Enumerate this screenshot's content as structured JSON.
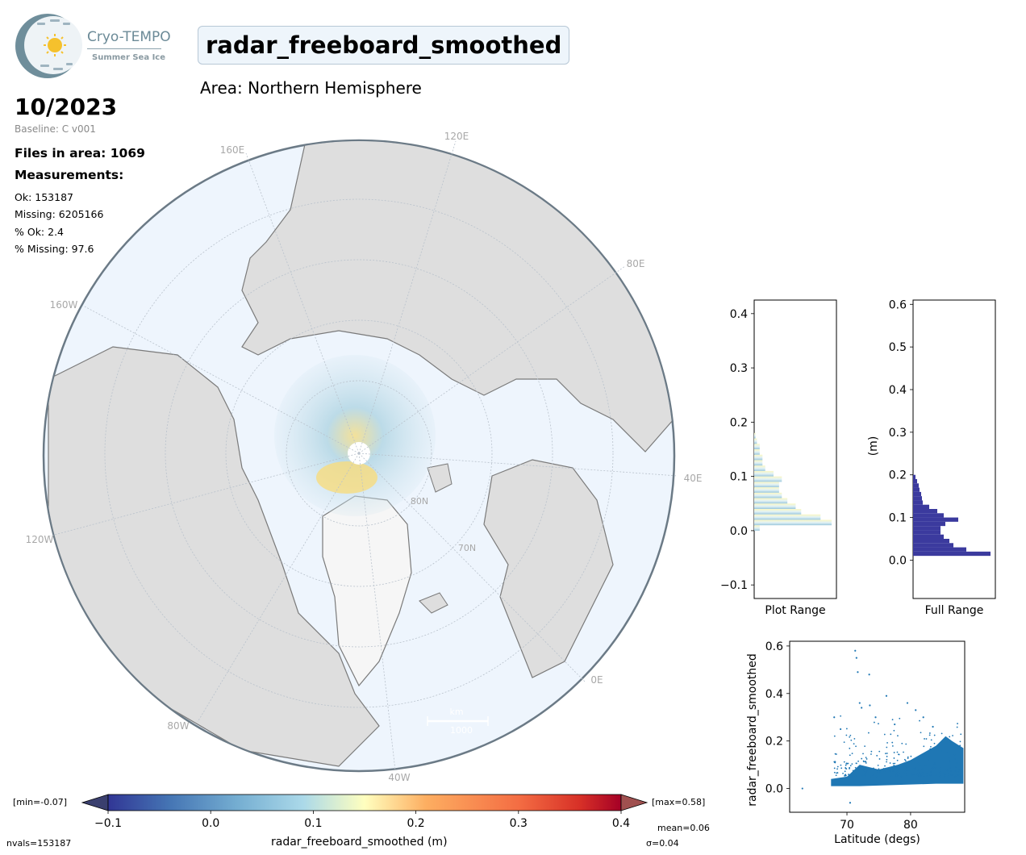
{
  "logo": {
    "name": "Cryo-TEMPO",
    "subtitle": "Summer Sea Ice"
  },
  "header": {
    "title": "radar_freeboard_smoothed",
    "area": "Area: Northern Hemisphere",
    "date": "10/2023",
    "baseline": "Baseline: C v001",
    "files": "Files in area: 1069",
    "measurements_title": "Measurements:",
    "ok": "Ok: 153187",
    "missing": "Missing: 6205166",
    "pct_ok": "% Ok: 2.4",
    "pct_missing": "% Missing: 97.6"
  },
  "map": {
    "lon_labels": [
      "120E",
      "160E",
      "80E",
      "160W",
      "40E",
      "120W",
      "0E",
      "80W",
      "40W"
    ],
    "lat_labels": [
      "80N",
      "70N"
    ],
    "scale_bar_text": [
      "km",
      "1000"
    ],
    "colors": {
      "ocean": "#eef5fd",
      "land": "#dcdcdc",
      "coast": "#7a7a7a",
      "greenland": "#f6f6f6"
    }
  },
  "colorbar": {
    "label": "radar_freeboard_smoothed (m)",
    "min_label": "[min=-0.07]",
    "max_label": "[max=0.58]",
    "nvals": "nvals=153187",
    "mean": "mean=0.06",
    "sigma": "σ=0.04",
    "ticks": [
      "−0.1",
      "0.0",
      "0.1",
      "0.2",
      "0.3",
      "0.4"
    ]
  },
  "chart_data": [
    {
      "type": "bar",
      "orientation": "horizontal",
      "xlabel": "Plot Range",
      "ylim": [
        -0.125,
        0.425
      ],
      "yticks": [
        -0.1,
        0.0,
        0.1,
        0.2,
        0.3,
        0.4
      ],
      "ytick_labels": [
        "−0.1",
        "0.0",
        "0.1",
        "0.2",
        "0.3",
        "0.4"
      ],
      "bin_width": 0.01,
      "bins": [
        0.0,
        0.01,
        0.02,
        0.03,
        0.04,
        0.05,
        0.06,
        0.07,
        0.08,
        0.09,
        0.1,
        0.11,
        0.12,
        0.13,
        0.14,
        0.15,
        0.16,
        0.17
      ],
      "counts": [
        2,
        28,
        24,
        17,
        15,
        12,
        10,
        9,
        9,
        10,
        7,
        4,
        3,
        3,
        2,
        2,
        1,
        0.5
      ],
      "colors": "radar_freeboard colormap"
    },
    {
      "type": "bar",
      "orientation": "horizontal",
      "xlabel": "Full Range",
      "ylabel": "(m)",
      "ylim": [
        -0.09,
        0.61
      ],
      "yticks": [
        0.0,
        0.1,
        0.2,
        0.3,
        0.4,
        0.5,
        0.6
      ],
      "ytick_labels": [
        "0.0",
        "0.1",
        "0.2",
        "0.3",
        "0.4",
        "0.5",
        "0.6"
      ],
      "bin_width": 0.01,
      "bins": [
        0.01,
        0.02,
        0.03,
        0.04,
        0.05,
        0.06,
        0.07,
        0.08,
        0.09,
        0.1,
        0.11,
        0.12,
        0.13,
        0.14,
        0.15,
        0.16,
        0.17,
        0.18,
        0.19
      ],
      "counts": [
        96,
        66,
        50,
        45,
        38,
        34,
        34,
        40,
        56,
        38,
        30,
        20,
        12,
        11,
        10,
        8,
        7,
        5,
        3
      ],
      "color": "#3b3a9e"
    },
    {
      "type": "scatter",
      "xlabel": "Latitude (degs)",
      "ylabel": "radar_freeboard_smoothed",
      "xlim": [
        61,
        88.5
      ],
      "ylim": [
        -0.1,
        0.62
      ],
      "xticks": [
        70,
        80
      ],
      "yticks": [
        0.0,
        0.2,
        0.4,
        0.6
      ],
      "ytick_labels": [
        "0.0",
        "0.2",
        "0.4",
        "0.6"
      ],
      "color": "#1f77b4",
      "points_outliers": [
        {
          "x": 63,
          "y": 0.0
        },
        {
          "x": 68,
          "y": 0.3
        },
        {
          "x": 69,
          "y": 0.25
        },
        {
          "x": 70.5,
          "y": -0.06
        },
        {
          "x": 71.3,
          "y": 0.58
        },
        {
          "x": 71.5,
          "y": 0.55
        },
        {
          "x": 71.7,
          "y": 0.49
        },
        {
          "x": 73.5,
          "y": 0.48
        },
        {
          "x": 72,
          "y": 0.36
        },
        {
          "x": 72.3,
          "y": 0.34
        },
        {
          "x": 73.6,
          "y": 0.35
        },
        {
          "x": 76.2,
          "y": 0.39
        },
        {
          "x": 79.5,
          "y": 0.36
        },
        {
          "x": 80.8,
          "y": 0.33
        },
        {
          "x": 82,
          "y": 0.3
        },
        {
          "x": 74.5,
          "y": 0.3
        },
        {
          "x": 77.5,
          "y": 0.27
        },
        {
          "x": 83.5,
          "y": 0.26
        }
      ],
      "envelope_upper": [
        {
          "x": 67.5,
          "y": 0.04
        },
        {
          "x": 70,
          "y": 0.05
        },
        {
          "x": 72,
          "y": 0.1
        },
        {
          "x": 75,
          "y": 0.08
        },
        {
          "x": 78,
          "y": 0.1
        },
        {
          "x": 80,
          "y": 0.12
        },
        {
          "x": 82,
          "y": 0.15
        },
        {
          "x": 84,
          "y": 0.18
        },
        {
          "x": 85.5,
          "y": 0.22
        },
        {
          "x": 86.5,
          "y": 0.2
        },
        {
          "x": 88.3,
          "y": 0.17
        }
      ],
      "envelope_lower": [
        {
          "x": 67.5,
          "y": 0.01
        },
        {
          "x": 72,
          "y": 0.01
        },
        {
          "x": 78,
          "y": 0.015
        },
        {
          "x": 84,
          "y": 0.02
        },
        {
          "x": 88.3,
          "y": 0.02
        }
      ]
    }
  ]
}
